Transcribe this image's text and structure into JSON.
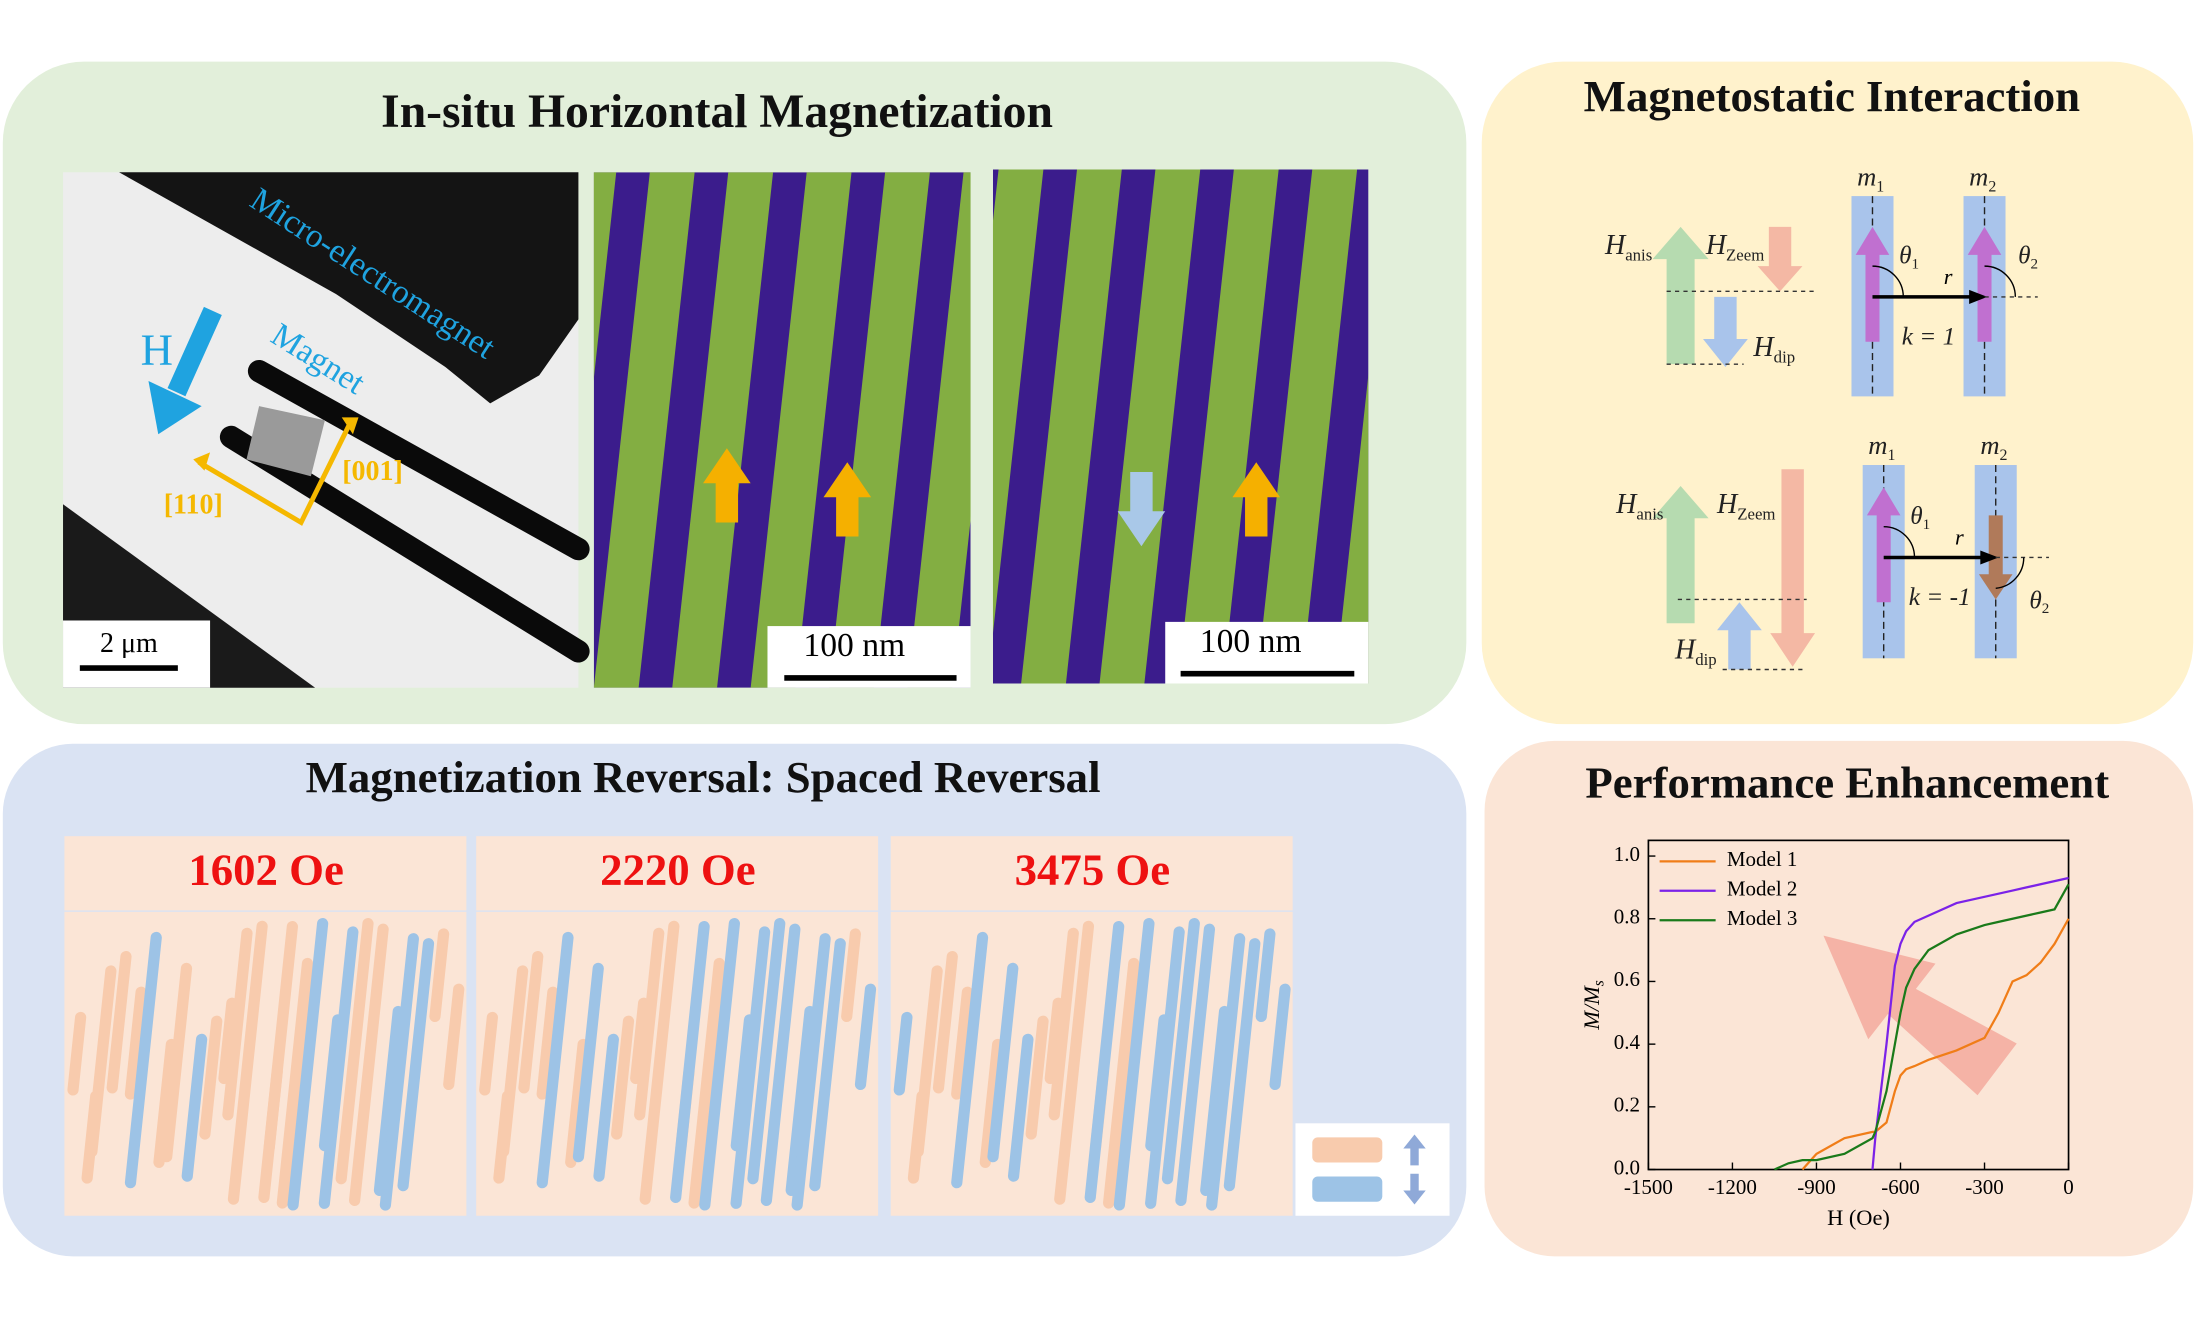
{
  "in_situ": {
    "title": "In-situ Horizontal Magnetization",
    "field_label": "H",
    "annotations": [
      "Micro-electromagnet",
      "Magnet"
    ],
    "directions": [
      "[001]",
      "[110]"
    ],
    "scale_bars": [
      "2 μm",
      "100 nm",
      "100 nm"
    ]
  },
  "magnetostatic": {
    "title": "Magnetostatic Interaction",
    "configs": [
      {
        "fields": [
          {
            "symbol": "H",
            "sub": "anis"
          },
          {
            "symbol": "H",
            "sub": "Zeem"
          },
          {
            "symbol": "H",
            "sub": "dip"
          }
        ],
        "moments": [
          {
            "symbol": "m",
            "sub": "1"
          },
          {
            "symbol": "m",
            "sub": "2"
          }
        ],
        "angles": [
          {
            "symbol": "θ",
            "sub": "1"
          },
          {
            "symbol": "θ",
            "sub": "2"
          }
        ],
        "distance": "r",
        "k": "k = 1"
      },
      {
        "fields": [
          {
            "symbol": "H",
            "sub": "anis"
          },
          {
            "symbol": "H",
            "sub": "Zeem"
          },
          {
            "symbol": "H",
            "sub": "dip"
          }
        ],
        "moments": [
          {
            "symbol": "m",
            "sub": "1"
          },
          {
            "symbol": "m",
            "sub": "2"
          }
        ],
        "angles": [
          {
            "symbol": "θ",
            "sub": "1"
          },
          {
            "symbol": "θ",
            "sub": "2"
          }
        ],
        "distance": "r",
        "k": "k = -1"
      }
    ]
  },
  "reversal": {
    "title": "Magnetization Reversal: Spaced Reversal",
    "fields": [
      "1602 Oe",
      "2220 Oe",
      "3475 Oe"
    ]
  },
  "chart_data": {
    "type": "line",
    "title": "Performance Enhancement",
    "xlabel": "H (Oe)",
    "ylabel": "M/M",
    "ylabel_subscript": "s",
    "x": [
      -1050,
      -1000,
      -950,
      -900,
      -800,
      -700,
      -690,
      -650,
      -620,
      -600,
      -580,
      -550,
      -500,
      -400,
      -300,
      -250,
      -200,
      -150,
      -100,
      -50,
      0
    ],
    "series": [
      {
        "name": "Model 1",
        "color": "#f07d18",
        "values": [
          null,
          null,
          0,
          0.05,
          0.1,
          0.12,
          0.12,
          0.15,
          0.25,
          0.3,
          0.32,
          0.33,
          0.35,
          0.38,
          0.42,
          0.5,
          0.6,
          0.62,
          0.66,
          0.72,
          0.8
        ]
      },
      {
        "name": "Model 2",
        "color": "#7b22e8",
        "values": [
          null,
          null,
          null,
          null,
          null,
          0,
          0.1,
          0.4,
          0.65,
          0.72,
          0.76,
          0.79,
          0.81,
          0.85,
          0.87,
          0.88,
          0.89,
          0.9,
          0.91,
          0.92,
          0.93
        ]
      },
      {
        "name": "Model 3",
        "color": "#1a7a1a",
        "values": [
          0,
          0.02,
          0.03,
          0.03,
          0.05,
          0.1,
          0.12,
          0.25,
          0.4,
          0.5,
          0.58,
          0.64,
          0.7,
          0.75,
          0.78,
          0.79,
          0.8,
          0.81,
          0.82,
          0.83,
          0.91
        ]
      }
    ],
    "xlim": [
      -1500,
      0
    ],
    "xticks": [
      -1500,
      -1200,
      -900,
      -600,
      -300,
      0
    ],
    "ylim": [
      0,
      1.05
    ],
    "yticks": [
      {
        "value": 0,
        "label": "0.0"
      },
      0.2,
      0.4,
      0.6,
      0.8,
      {
        "value": 1,
        "label": "1.0"
      }
    ],
    "grid": false,
    "legend": "upper left"
  }
}
